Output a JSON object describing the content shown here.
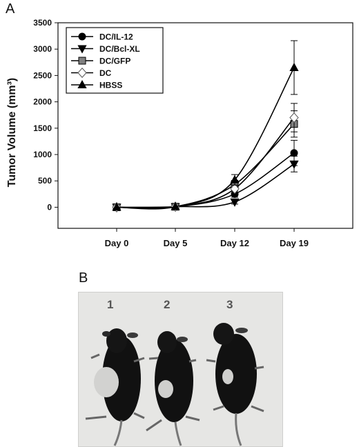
{
  "panels": {
    "a_label": "A",
    "b_label": "B"
  },
  "chart_data": {
    "type": "line",
    "ylabel": "Tumor Volume (mm³)",
    "xlabel": "",
    "categories": [
      "Day 0",
      "Day 5",
      "Day 12",
      "Day 19"
    ],
    "ylim": [
      -400,
      3500
    ],
    "yticks": [
      0,
      500,
      1000,
      1500,
      2000,
      2500,
      3000,
      3500
    ],
    "grid": false,
    "legend_position": "top-left",
    "series": [
      {
        "name": "DC/IL-12",
        "marker": "circle",
        "fill": "#000000",
        "values": [
          0,
          10,
          250,
          1030
        ],
        "err": [
          0,
          0,
          60,
          240
        ]
      },
      {
        "name": "DC/Bcl-XL",
        "marker": "triangle-down",
        "fill": "#000000",
        "values": [
          0,
          10,
          100,
          820
        ],
        "err": [
          0,
          0,
          40,
          150
        ]
      },
      {
        "name": "DC/GFP",
        "marker": "square",
        "fill": "#808080",
        "values": [
          0,
          10,
          430,
          1580
        ],
        "err": [
          0,
          0,
          80,
          250
        ]
      },
      {
        "name": "DC",
        "marker": "diamond",
        "fill": "#ffffff",
        "values": [
          0,
          10,
          350,
          1700
        ],
        "err": [
          0,
          0,
          70,
          270
        ]
      },
      {
        "name": "HBSS",
        "marker": "triangle-up",
        "fill": "#000000",
        "values": [
          0,
          10,
          520,
          2650
        ],
        "err": [
          0,
          0,
          100,
          510
        ]
      }
    ]
  },
  "photo": {
    "labels": [
      "1",
      "2",
      "3"
    ]
  }
}
